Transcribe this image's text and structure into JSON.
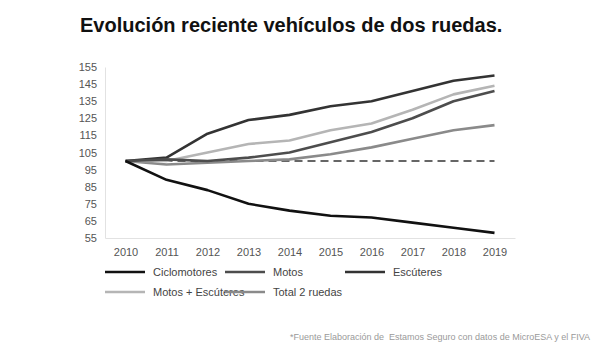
{
  "chart_data": {
    "type": "line",
    "title": "Evolución reciente vehículos de dos ruedas.",
    "source": "*Fuente Elaboración de  Estamos Seguro con datos de MicroESA y el FIVA",
    "categories": [
      "2010",
      "2011",
      "2012",
      "2013",
      "2014",
      "2015",
      "2016",
      "2017",
      "2018",
      "2019"
    ],
    "ylim": [
      55,
      155
    ],
    "yticks": [
      55,
      65,
      75,
      85,
      95,
      105,
      115,
      125,
      135,
      145,
      155
    ],
    "grid": false,
    "legend": "bottom",
    "series": [
      {
        "name": "Ciclomotores",
        "color": "#111111",
        "values": [
          100,
          89,
          83,
          75,
          71,
          68,
          67,
          64,
          61,
          58
        ]
      },
      {
        "name": "Motos",
        "color": "#4d4d4d",
        "values": [
          100,
          101,
          100,
          102,
          105,
          111,
          117,
          125,
          135,
          141
        ]
      },
      {
        "name": "Escúteres",
        "color": "#333333",
        "values": [
          100,
          102,
          116,
          124,
          127,
          132,
          135,
          141,
          147,
          150
        ]
      },
      {
        "name": "Motos + Escúteres",
        "color": "#b5b5b5",
        "values": [
          100,
          100,
          105,
          110,
          112,
          118,
          122,
          130,
          139,
          144
        ]
      },
      {
        "name": "Total 2 ruedas",
        "color": "#8a8a8a",
        "values": [
          100,
          98,
          99,
          100,
          101,
          104,
          108,
          113,
          118,
          121
        ]
      },
      {
        "color": "#666666",
        "line_style": "dashed",
        "values": [
          100,
          100,
          100,
          100,
          100,
          100,
          100,
          100,
          100,
          100
        ]
      }
    ]
  }
}
